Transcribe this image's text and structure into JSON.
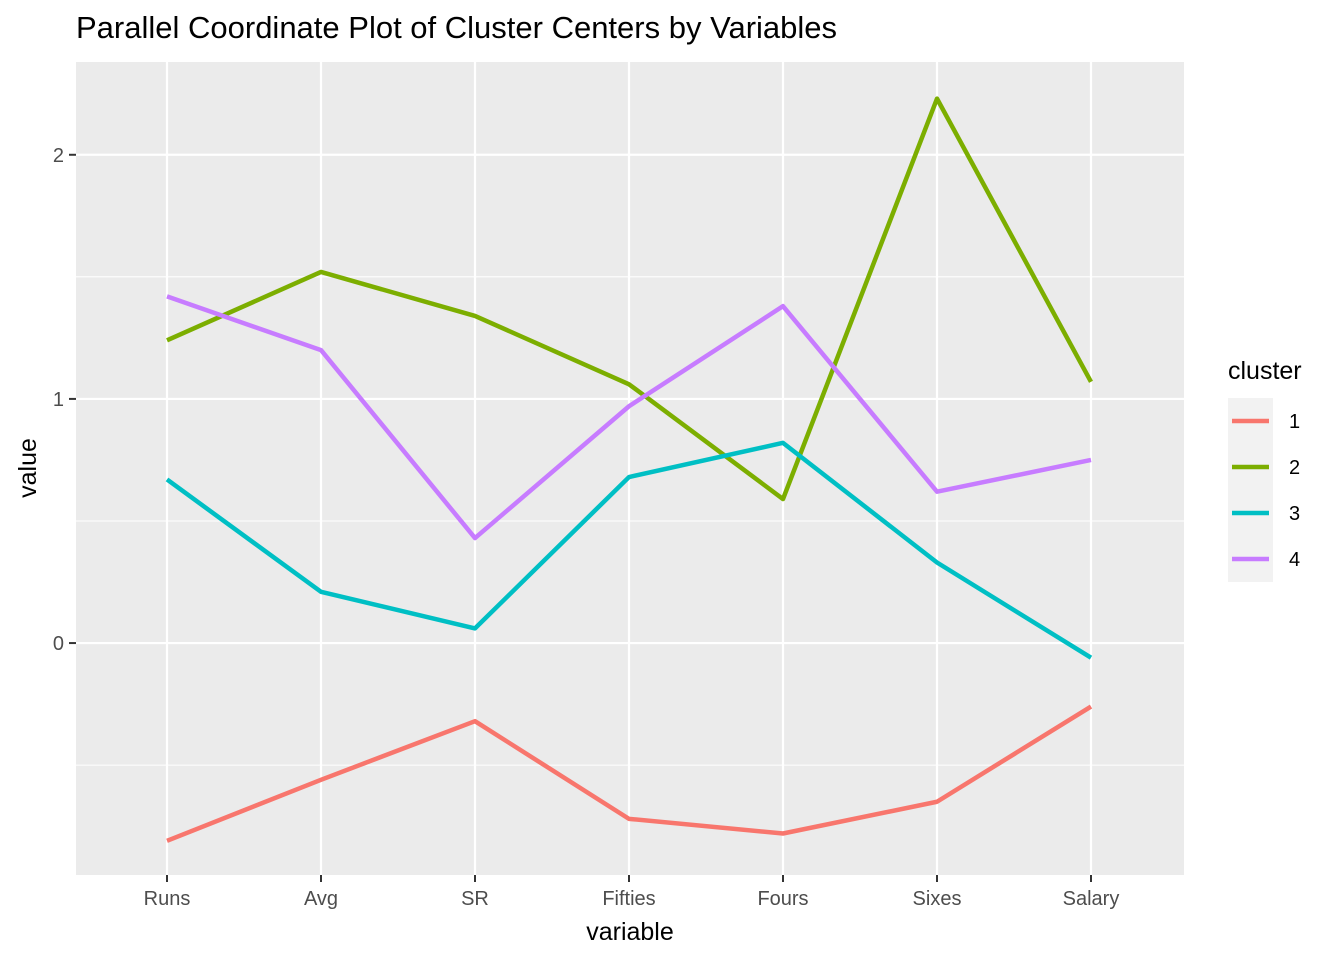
{
  "chart_data": {
    "type": "line",
    "title": "Parallel Coordinate Plot of Cluster Centers by Variables",
    "xlabel": "variable",
    "ylabel": "value",
    "categories": [
      "Runs",
      "Avg",
      "SR",
      "Fifties",
      "Fours",
      "Sixes",
      "Salary"
    ],
    "yticks": [
      0,
      1,
      2
    ],
    "ylim": [
      -0.95,
      2.38
    ],
    "grid": true,
    "legend": {
      "title": "cluster",
      "position": "right"
    },
    "series": [
      {
        "name": "1",
        "color": "#F8766D",
        "values": [
          -0.81,
          -0.56,
          -0.32,
          -0.72,
          -0.78,
          -0.65,
          -0.26
        ]
      },
      {
        "name": "2",
        "color": "#7CAE00",
        "values": [
          1.24,
          1.52,
          1.34,
          1.06,
          0.59,
          2.23,
          1.07
        ]
      },
      {
        "name": "3",
        "color": "#00BFC4",
        "values": [
          0.67,
          0.21,
          0.06,
          0.68,
          0.82,
          0.33,
          -0.06
        ]
      },
      {
        "name": "4",
        "color": "#C77CFF",
        "values": [
          1.42,
          1.2,
          0.43,
          0.97,
          1.38,
          0.62,
          0.75
        ]
      }
    ]
  }
}
